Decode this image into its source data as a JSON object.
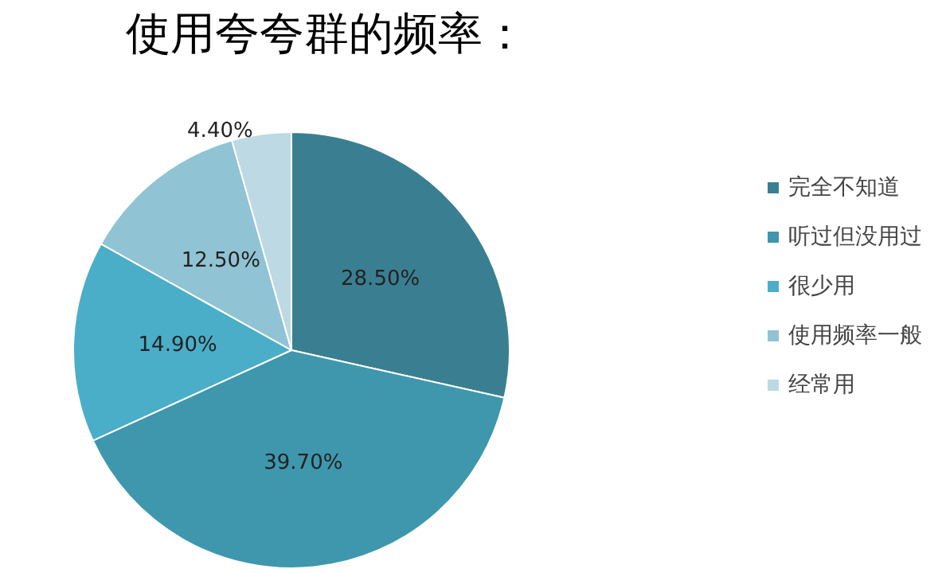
{
  "chart_data": {
    "type": "pie",
    "title": "使用夸夸群的频率：",
    "categories": [
      "完全不知道",
      "听过但没用过",
      "很少用",
      "使用频率一般",
      "经常用"
    ],
    "values": [
      28.5,
      39.7,
      14.9,
      12.5,
      4.4
    ],
    "value_labels": [
      "28.50%",
      "39.70%",
      "14.90%",
      "12.50%",
      "4.40%"
    ],
    "colors": [
      "#3a7f91",
      "#3f97ad",
      "#4aaec8",
      "#90c3d4",
      "#bcd9e4"
    ],
    "legend": "right"
  }
}
